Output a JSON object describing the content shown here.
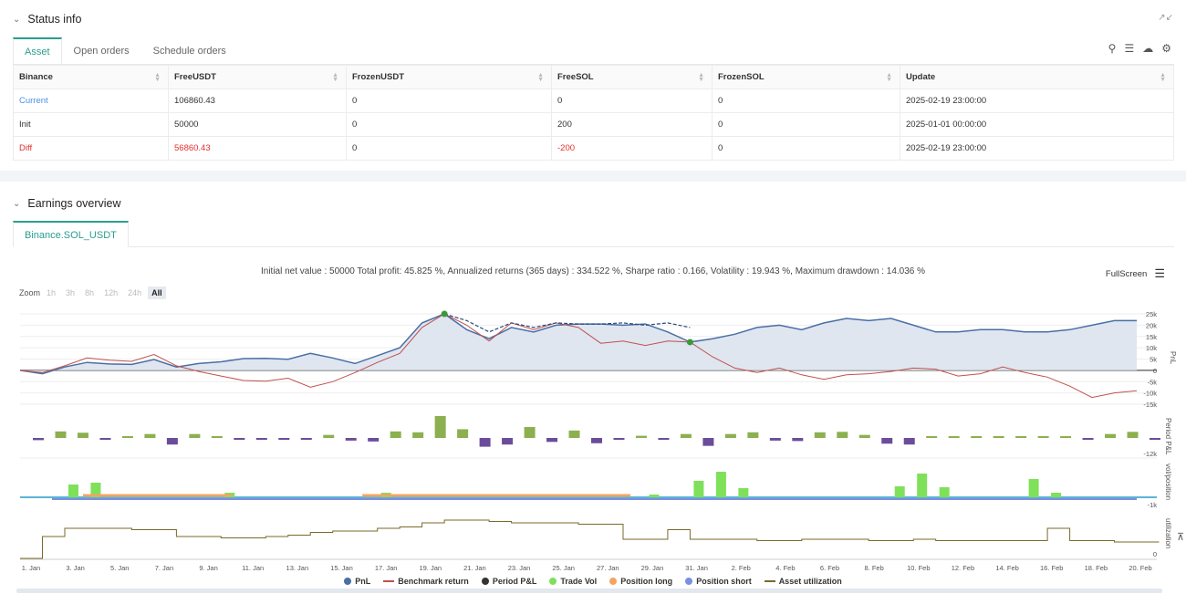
{
  "status": {
    "title": "Status info",
    "tabs": [
      "Asset",
      "Open orders",
      "Schedule orders"
    ],
    "columns": [
      "Binance",
      "FreeUSDT",
      "FrozenUSDT",
      "FreeSOL",
      "FrozenSOL",
      "Update"
    ],
    "rows": [
      {
        "label": "Current",
        "cells": [
          "106860.43",
          "0",
          "0",
          "0",
          "2025-02-19 23:00:00"
        ]
      },
      {
        "label": "Init",
        "cells": [
          "50000",
          "0",
          "200",
          "0",
          "2025-01-01 00:00:00"
        ]
      },
      {
        "label": "Diff",
        "cells": [
          "56860.43",
          "0",
          "-200",
          "0",
          "2025-02-19 23:00:00"
        ]
      }
    ],
    "icons": [
      "search-icon",
      "list-icon",
      "download-icon",
      "gear-icon",
      "expand-icon"
    ]
  },
  "earnings": {
    "title": "Earnings overview",
    "tab": "Binance.SOL_USDT",
    "summary": "Initial net value : 50000 Total profit: 45.825 %, Annualized returns (365 days) : 334.522 %, Sharpe ratio : 0.166, Volatility : 19.943 %, Maximum drawdown : 14.036 %",
    "fullscreen": "FullScreen",
    "zoom_label": "Zoom",
    "zoom_buttons": [
      "1h",
      "3h",
      "8h",
      "12h",
      "24h",
      "All"
    ],
    "legend": [
      "PnL",
      "Benchmark return",
      "Period P&L",
      "Trade Vol",
      "Position long",
      "Position short",
      "Asset utilization"
    ]
  },
  "chart_data": {
    "type": "line",
    "x_labels": [
      "1. Jan",
      "3. Jan",
      "5. Jan",
      "7. Jan",
      "9. Jan",
      "11. Jan",
      "13. Jan",
      "15. Jan",
      "17. Jan",
      "19. Jan",
      "21. Jan",
      "23. Jan",
      "25. Jan",
      "27. Jan",
      "29. Jan",
      "31. Jan",
      "2. Feb",
      "4. Feb",
      "6. Feb",
      "8. Feb",
      "10. Feb",
      "12. Feb",
      "14. Feb",
      "16. Feb",
      "18. Feb",
      "20. Feb"
    ],
    "pnl_axis": {
      "ticks": [
        "25k",
        "20k",
        "15k",
        "10k",
        "5k",
        "0",
        "-5k",
        "-10k",
        "-15k"
      ],
      "label": "PnL",
      "ylim": [
        -15000,
        25000
      ]
    },
    "period_axis": {
      "ticks": [
        "-12k"
      ],
      "label": "Period P&L"
    },
    "vol_axis": {
      "ticks": [
        "-1k"
      ],
      "label": "vol/position"
    },
    "util_axis": {
      "ticks": [
        "0"
      ],
      "label": "utilization"
    },
    "colors": {
      "pnl": "#4a6fa5",
      "benchmark": "#c0504d",
      "period_pos": "#8cb050",
      "period_neg": "#6b4c9a",
      "trade_vol": "#7fe05a",
      "pos_long": "#f4a460",
      "pos_short": "#7b8fe0",
      "util": "#7a6a2a"
    },
    "series": [
      {
        "name": "PnL",
        "x": [
          1,
          2,
          3,
          4,
          5,
          6,
          7,
          8,
          9,
          10,
          11,
          12,
          13,
          14,
          15,
          16,
          17,
          18,
          19,
          20,
          21,
          22,
          23,
          24,
          25,
          26,
          27,
          28,
          29,
          30,
          31,
          32,
          33,
          34,
          35,
          36,
          37,
          38,
          39,
          40,
          41,
          42,
          43,
          44,
          45,
          46,
          47,
          48,
          49,
          50,
          51
        ],
        "values": [
          0,
          -1500,
          1500,
          3500,
          2800,
          2600,
          4800,
          1500,
          3000,
          3800,
          5200,
          5300,
          4900,
          7500,
          5500,
          3000,
          6500,
          10000,
          21000,
          25000,
          18000,
          14000,
          19000,
          17000,
          20000,
          20500,
          20500,
          20000,
          20500,
          17000,
          12500,
          14000,
          16000,
          19000,
          20000,
          18000,
          21000,
          23000,
          22000,
          23000,
          20000,
          17000,
          17000,
          18000,
          18000,
          17000,
          17000,
          18000,
          20000,
          22000,
          22000
        ]
      },
      {
        "name": "Benchmark return",
        "x": [
          1,
          2,
          3,
          4,
          5,
          6,
          7,
          8,
          9,
          10,
          11,
          12,
          13,
          14,
          15,
          16,
          17,
          18,
          19,
          20,
          21,
          22,
          23,
          24,
          25,
          26,
          27,
          28,
          29,
          30,
          31,
          32,
          33,
          34,
          35,
          36,
          37,
          38,
          39,
          40,
          41,
          42,
          43,
          44,
          45,
          46,
          47,
          48,
          49,
          50,
          51
        ],
        "values": [
          0,
          -1000,
          2000,
          5500,
          4500,
          4000,
          7000,
          2000,
          -500,
          -2500,
          -4500,
          -4800,
          -3500,
          -7500,
          -5000,
          -1000,
          3500,
          7500,
          19000,
          25000,
          20000,
          13000,
          21000,
          18000,
          21000,
          19000,
          12000,
          13000,
          11000,
          13000,
          12500,
          6000,
          1000,
          -1000,
          1000,
          -2000,
          -4000,
          -2000,
          -1500,
          -500,
          1000,
          500,
          -2500,
          -1500,
          1500,
          -1000,
          -3000,
          -7000,
          -12000,
          -10000,
          -9000
        ]
      }
    ]
  }
}
